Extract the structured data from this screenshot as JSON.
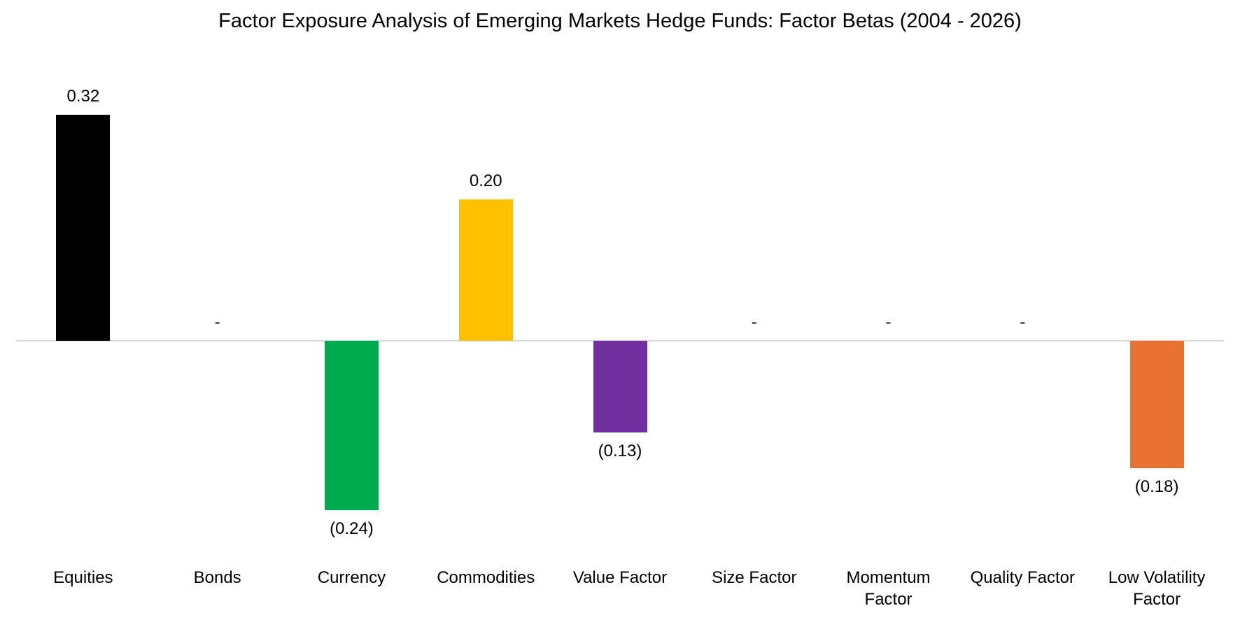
{
  "chart_data": {
    "type": "bar",
    "title": "Factor Exposure Analysis of Emerging Markets Hedge Funds: Factor Betas (2004 - 2026)",
    "categories": [
      "Equities",
      "Bonds",
      "Currency",
      "Commodities",
      "Value Factor",
      "Size Factor",
      "Momentum Factor",
      "Quality Factor",
      "Low Volatility Factor"
    ],
    "values": [
      0.32,
      0,
      -0.24,
      0.2,
      -0.13,
      0,
      0,
      0,
      -0.18
    ],
    "value_labels": [
      "0.32",
      "-",
      "(0.24)",
      "0.20",
      "(0.13)",
      "-",
      "-",
      "-",
      "(0.18)"
    ],
    "bar_colors": [
      "#000000",
      null,
      "#00AB50",
      "#FFC000",
      "#7030A0",
      null,
      null,
      null,
      "#E97132"
    ],
    "xlabel": "",
    "ylabel": "",
    "ylim": [
      -0.3,
      0.35
    ],
    "baseline_value": 0,
    "baseline_color": "#D9D9D9",
    "grid": false,
    "legend": false,
    "value_label_position": "outside-end",
    "negative_label_format": "parentheses"
  }
}
